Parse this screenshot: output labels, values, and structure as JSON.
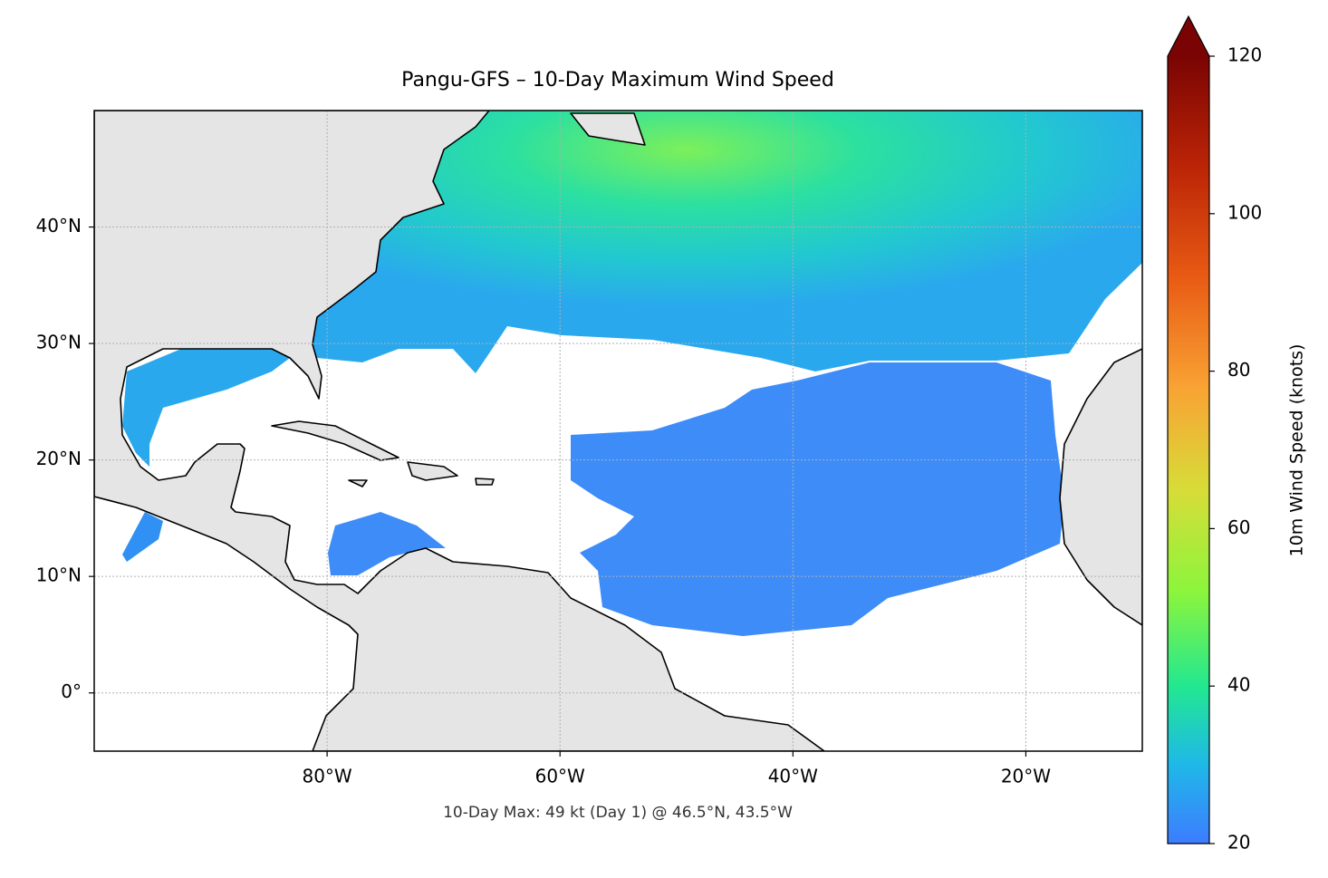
{
  "chart_data": {
    "type": "map",
    "title": "Pangu-GFS – 10-Day Maximum Wind Speed",
    "annotation": "10-Day Max: 49 kt (Day 1) @ 46.5°N, 43.5°W",
    "xlim": [
      -100,
      -10
    ],
    "ylim": [
      -5,
      50
    ],
    "xticks": [
      {
        "value": -80,
        "label": "80°W"
      },
      {
        "value": -60,
        "label": "60°W"
      },
      {
        "value": -40,
        "label": "40°W"
      },
      {
        "value": -20,
        "label": "20°W"
      }
    ],
    "yticks": [
      {
        "value": 0,
        "label": "0°"
      },
      {
        "value": 10,
        "label": "10°N"
      },
      {
        "value": 20,
        "label": "20°N"
      },
      {
        "value": 30,
        "label": "30°N"
      },
      {
        "value": 40,
        "label": "40°N"
      }
    ],
    "grid": true,
    "colorbar": {
      "label": "10m Wind Speed (knots)",
      "lim": [
        20,
        120
      ],
      "ticks": [
        20,
        40,
        60,
        80,
        100,
        120
      ]
    }
  }
}
